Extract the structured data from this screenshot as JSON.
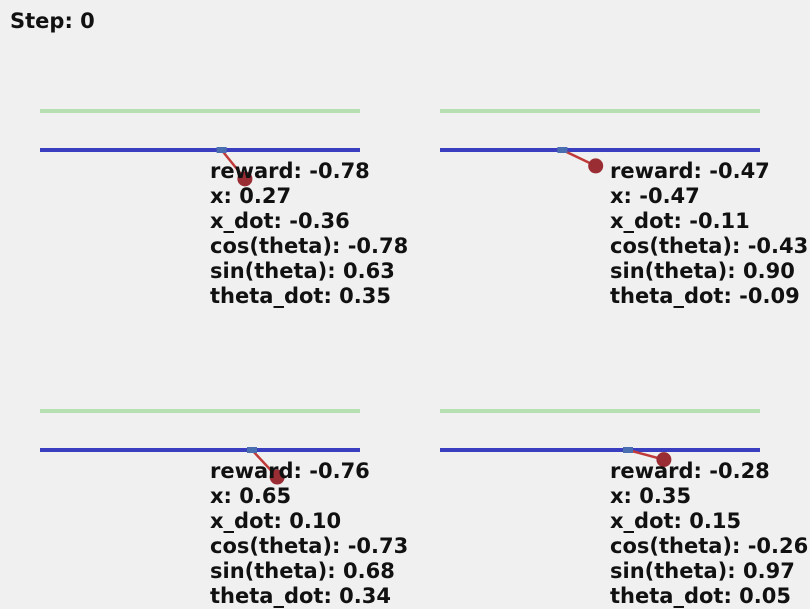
{
  "step": {
    "label": "Step:",
    "value": "0"
  },
  "colors": {
    "goal_line": "#b7e0b2",
    "track": "#3a3fc0",
    "cart": "#4a6fb0",
    "pole": "#c03a3a",
    "bob": "#9a2c34",
    "background": "#f0f0f0"
  },
  "panels": [
    {
      "reward": "reward: -0.78",
      "x": "x: 0.27",
      "x_dot": "x_dot: -0.36",
      "cos": "cos(theta): -0.78",
      "sin": "sin(theta): 0.63",
      "theta_dot": "theta_dot: 0.35",
      "state": {
        "x": 0.27,
        "cos": -0.78,
        "sin": 0.63
      }
    },
    {
      "reward": "reward: -0.47",
      "x": "x: -0.47",
      "x_dot": "x_dot: -0.11",
      "cos": "cos(theta): -0.43",
      "sin": "sin(theta): 0.90",
      "theta_dot": "theta_dot: -0.09",
      "state": {
        "x": -0.47,
        "cos": -0.43,
        "sin": 0.9
      }
    },
    {
      "reward": "reward: -0.76",
      "x": "x: 0.65",
      "x_dot": "x_dot: 0.10",
      "cos": "cos(theta): -0.73",
      "sin": "sin(theta): 0.68",
      "theta_dot": "theta_dot: 0.34",
      "state": {
        "x": 0.65,
        "cos": -0.73,
        "sin": 0.68
      }
    },
    {
      "reward": "reward: -0.28",
      "x": "x: 0.35",
      "x_dot": "x_dot: 0.15",
      "cos": "cos(theta): -0.26",
      "sin": "sin(theta): 0.97",
      "theta_dot": "theta_dot: 0.05",
      "state": {
        "x": 0.35,
        "cos": -0.26,
        "sin": 0.97
      }
    }
  ]
}
